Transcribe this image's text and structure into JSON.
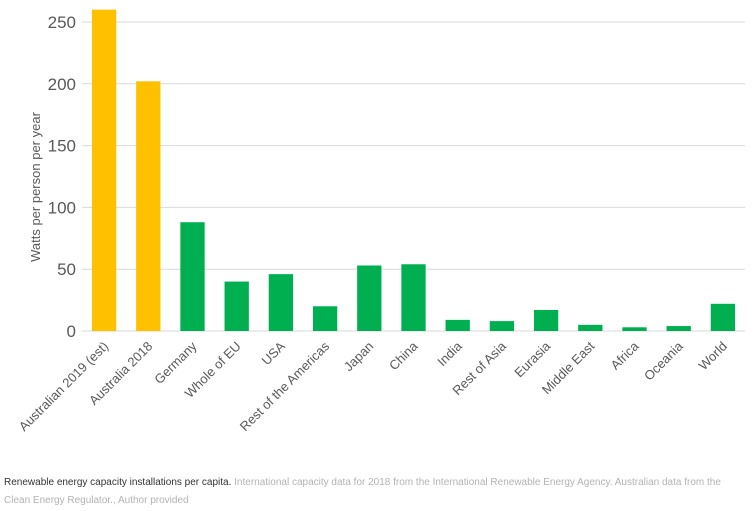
{
  "chart_data": {
    "type": "bar",
    "ylabel": "Watts per person per year",
    "ylim": [
      0,
      250
    ],
    "yticks": [
      0,
      50,
      100,
      150,
      200,
      250
    ],
    "grid": true,
    "categories": [
      "Australian 2019 (est)",
      "Australia 2018",
      "Germany",
      "Whole of EU",
      "USA",
      "Rest of the Americas",
      "Japan",
      "China",
      "India",
      "Rest of Asia",
      "Eurasia",
      "Middle East",
      "Africa",
      "Oceania",
      "World"
    ],
    "values": [
      260,
      202,
      88,
      40,
      46,
      20,
      53,
      54,
      9,
      8,
      17,
      5,
      3,
      4,
      22
    ],
    "colors": [
      "#FFC000",
      "#FFC000",
      "#00B050",
      "#00B050",
      "#00B050",
      "#00B050",
      "#00B050",
      "#00B050",
      "#00B050",
      "#00B050",
      "#00B050",
      "#00B050",
      "#00B050",
      "#00B050",
      "#00B050"
    ]
  },
  "caption": {
    "main": "Renewable energy capacity installations per capita.",
    "source": "International capacity data for 2018 from the International Renewable Energy Agency. Australian data from the Clean Energy Regulator., Author provided"
  }
}
